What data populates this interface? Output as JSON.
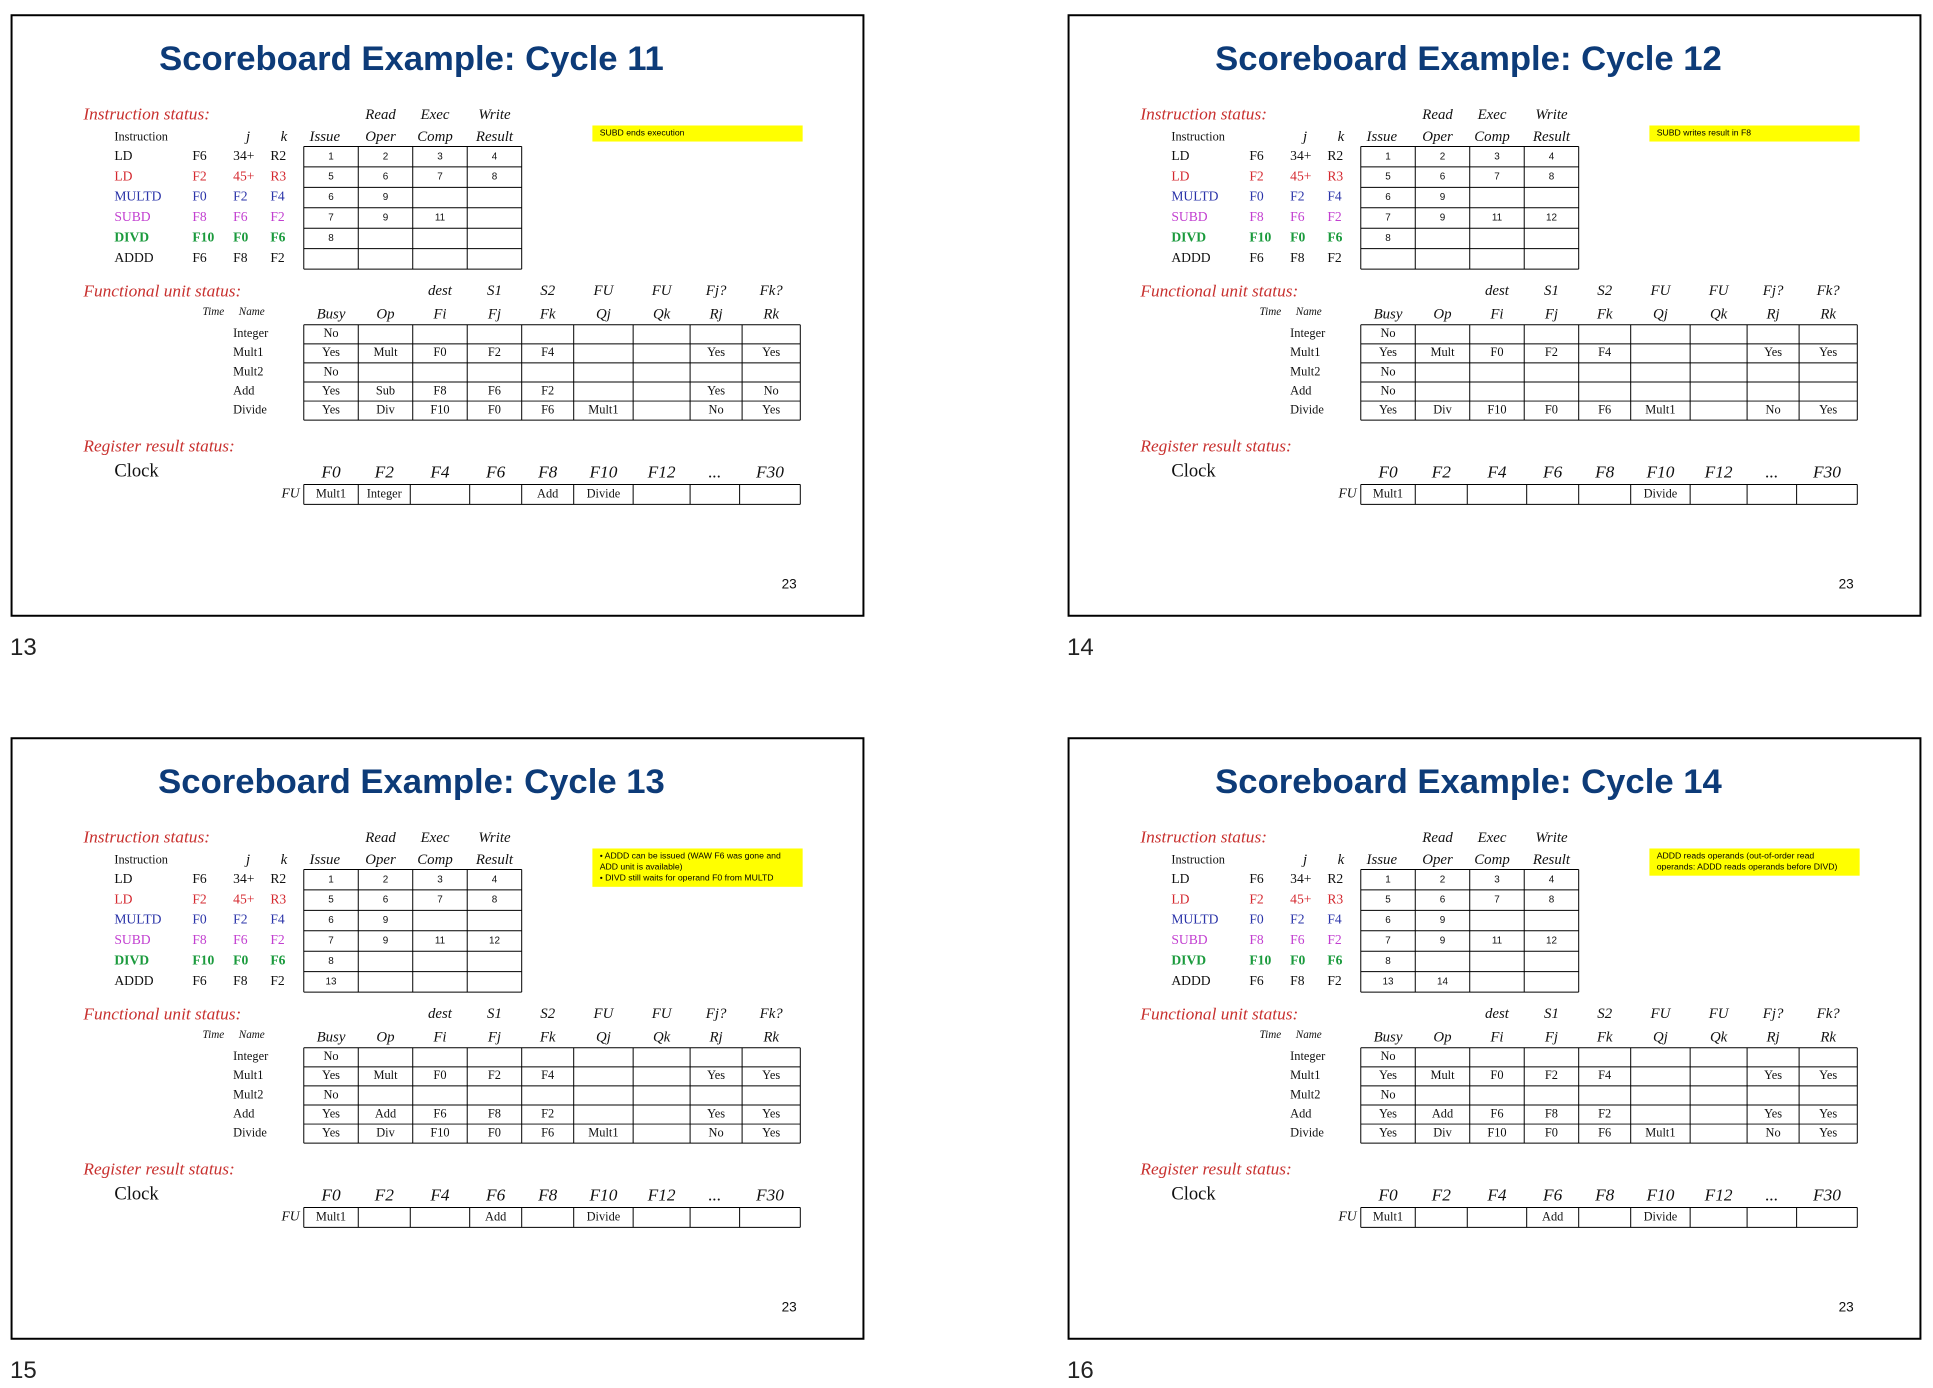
{
  "labels": {
    "instruction_status": "Instruction status:",
    "instr_header_top": [
      "Read",
      "Exec",
      "Write"
    ],
    "instr_header": [
      "Instruction",
      "j",
      "k",
      "Issue",
      "Oper",
      "Comp",
      "Result"
    ],
    "functional_unit_status": "Functional unit status:",
    "fu_header_top": [
      "dest",
      "S1",
      "S2",
      "FU",
      "FU",
      "Fj?",
      "Fk?"
    ],
    "fu_header": [
      "Time",
      "Name",
      "Busy",
      "Op",
      "Fi",
      "Fj",
      "Fk",
      "Qj",
      "Qk",
      "Rj",
      "Rk"
    ],
    "register_result_status": "Register result status:",
    "clock": "Clock",
    "fu": "FU"
  },
  "instructions": [
    {
      "op": "LD",
      "dest": "F6",
      "j": "34+",
      "k": "R2",
      "color": "#111111",
      "bold": false
    },
    {
      "op": "LD",
      "dest": "F2",
      "j": "45+",
      "k": "R3",
      "color": "#d4282f",
      "bold": false
    },
    {
      "op": "MULTD",
      "dest": "F0",
      "j": "F2",
      "k": "F4",
      "color": "#2a33a8",
      "bold": false
    },
    {
      "op": "SUBD",
      "dest": "F8",
      "j": "F6",
      "k": "F2",
      "color": "#c23fd0",
      "bold": false
    },
    {
      "op": "DIVD",
      "dest": "F10",
      "j": "F0",
      "k": "F6",
      "color": "#1a9a3c",
      "bold": true
    },
    {
      "op": "ADDD",
      "dest": "F6",
      "j": "F8",
      "k": "F2",
      "color": "#111111",
      "bold": false
    }
  ],
  "fu_names": [
    "Integer",
    "Mult1",
    "Mult2",
    "Add",
    "Divide"
  ],
  "registers": [
    "F0",
    "F2",
    "F4",
    "F6",
    "F8",
    "F10",
    "F12",
    "...",
    "F30"
  ],
  "slides": [
    {
      "number": 13,
      "title": "Scoreboard Example: Cycle 11",
      "note": [
        "SUBD ends execution"
      ],
      "instruction_status": [
        [
          1,
          2,
          3,
          4
        ],
        [
          5,
          6,
          7,
          8
        ],
        [
          6,
          9,
          null,
          null
        ],
        [
          7,
          9,
          11,
          null
        ],
        [
          8,
          null,
          null,
          null
        ],
        [
          null,
          null,
          null,
          null
        ]
      ],
      "fu_status": [
        [
          "No",
          null,
          null,
          null,
          null,
          null,
          null,
          null,
          null
        ],
        [
          "Yes",
          "Mult",
          "F0",
          "F2",
          "F4",
          null,
          null,
          "Yes",
          "Yes"
        ],
        [
          "No",
          null,
          null,
          null,
          null,
          null,
          null,
          null,
          null
        ],
        [
          "Yes",
          "Sub",
          "F8",
          "F6",
          "F2",
          null,
          null,
          "Yes",
          "No"
        ],
        [
          "Yes",
          "Div",
          "F10",
          "F0",
          "F6",
          "Mult1",
          null,
          "No",
          "Yes"
        ]
      ],
      "register_fu": [
        "Mult1",
        "Integer",
        null,
        null,
        "Add",
        "Divide",
        null,
        null,
        null
      ],
      "page": 23
    },
    {
      "number": 14,
      "title": "Scoreboard Example: Cycle 12",
      "note": [
        "SUBD writes result in F8"
      ],
      "instruction_status": [
        [
          1,
          2,
          3,
          4
        ],
        [
          5,
          6,
          7,
          8
        ],
        [
          6,
          9,
          null,
          null
        ],
        [
          7,
          9,
          11,
          12
        ],
        [
          8,
          null,
          null,
          null
        ],
        [
          null,
          null,
          null,
          null
        ]
      ],
      "fu_status": [
        [
          "No",
          null,
          null,
          null,
          null,
          null,
          null,
          null,
          null
        ],
        [
          "Yes",
          "Mult",
          "F0",
          "F2",
          "F4",
          null,
          null,
          "Yes",
          "Yes"
        ],
        [
          "No",
          null,
          null,
          null,
          null,
          null,
          null,
          null,
          null
        ],
        [
          "No",
          null,
          null,
          null,
          null,
          null,
          null,
          null,
          null
        ],
        [
          "Yes",
          "Div",
          "F10",
          "F0",
          "F6",
          "Mult1",
          null,
          "No",
          "Yes"
        ]
      ],
      "register_fu": [
        "Mult1",
        null,
        null,
        null,
        null,
        "Divide",
        null,
        null,
        null
      ],
      "page": 23
    },
    {
      "number": 15,
      "title": "Scoreboard Example: Cycle 13",
      "note": [
        "• ADDD can be issued (WAW F6 was gone and ADD unit is available)",
        "• DIVD still waits for operand F0 from MULTD"
      ],
      "instruction_status": [
        [
          1,
          2,
          3,
          4
        ],
        [
          5,
          6,
          7,
          8
        ],
        [
          6,
          9,
          null,
          null
        ],
        [
          7,
          9,
          11,
          12
        ],
        [
          8,
          null,
          null,
          null
        ],
        [
          13,
          null,
          null,
          null
        ]
      ],
      "fu_status": [
        [
          "No",
          null,
          null,
          null,
          null,
          null,
          null,
          null,
          null
        ],
        [
          "Yes",
          "Mult",
          "F0",
          "F2",
          "F4",
          null,
          null,
          "Yes",
          "Yes"
        ],
        [
          "No",
          null,
          null,
          null,
          null,
          null,
          null,
          null,
          null
        ],
        [
          "Yes",
          "Add",
          "F6",
          "F8",
          "F2",
          null,
          null,
          "Yes",
          "Yes"
        ],
        [
          "Yes",
          "Div",
          "F10",
          "F0",
          "F6",
          "Mult1",
          null,
          "No",
          "Yes"
        ]
      ],
      "register_fu": [
        "Mult1",
        null,
        null,
        "Add",
        null,
        "Divide",
        null,
        null,
        null
      ],
      "page": 23
    },
    {
      "number": 16,
      "title": "Scoreboard Example: Cycle 14",
      "note": [
        "ADDD reads operands (out-of-order read operands: ADDD reads operands before DIVD)"
      ],
      "instruction_status": [
        [
          1,
          2,
          3,
          4
        ],
        [
          5,
          6,
          7,
          8
        ],
        [
          6,
          9,
          null,
          null
        ],
        [
          7,
          9,
          11,
          12
        ],
        [
          8,
          null,
          null,
          null
        ],
        [
          13,
          14,
          null,
          null
        ]
      ],
      "fu_status": [
        [
          "No",
          null,
          null,
          null,
          null,
          null,
          null,
          null,
          null
        ],
        [
          "Yes",
          "Mult",
          "F0",
          "F2",
          "F4",
          null,
          null,
          "Yes",
          "Yes"
        ],
        [
          "No",
          null,
          null,
          null,
          null,
          null,
          null,
          null,
          null
        ],
        [
          "Yes",
          "Add",
          "F6",
          "F8",
          "F2",
          null,
          null,
          "Yes",
          "Yes"
        ],
        [
          "Yes",
          "Div",
          "F10",
          "F0",
          "F6",
          "Mult1",
          null,
          "No",
          "Yes"
        ]
      ],
      "register_fu": [
        "Mult1",
        null,
        null,
        "Add",
        null,
        "Divide",
        null,
        null,
        null
      ],
      "page": 23
    }
  ]
}
